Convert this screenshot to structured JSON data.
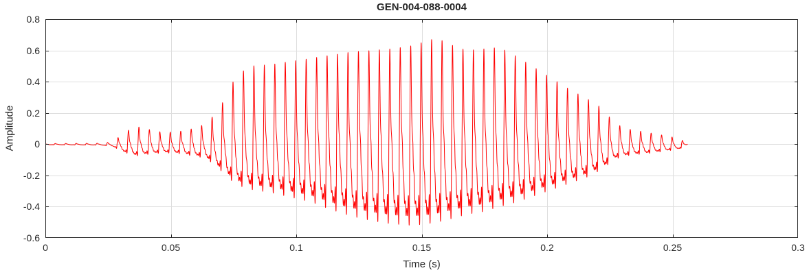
{
  "figure": {
    "background": "#ffffff"
  },
  "chart_data": {
    "type": "line",
    "title": "GEN-004-088-0004",
    "xlabel": "Time (s)",
    "ylabel": "Amplitude",
    "xlim": [
      0,
      0.3
    ],
    "ylim": [
      -0.6,
      0.8
    ],
    "x_ticks": [
      0,
      0.05,
      0.1,
      0.15,
      0.2,
      0.25,
      0.3
    ],
    "x_tick_labels": [
      "0",
      "0.05",
      "0.1",
      "0.15",
      "0.2",
      "0.25",
      "0.3"
    ],
    "y_ticks": [
      -0.6,
      -0.4,
      -0.2,
      0,
      0.2,
      0.4,
      0.6,
      0.8
    ],
    "y_tick_labels": [
      "-0.6",
      "-0.4",
      "-0.2",
      "0",
      "0.2",
      "0.4",
      "0.6",
      "0.8"
    ],
    "grid": true,
    "grid_color": "#dedede",
    "axis_color": "#262626",
    "line_color": "#ff0000",
    "line_width": 1,
    "legend": null,
    "signal": {
      "description": "speech-like amplitude waveform burst, silence until ~0.025 s, small oscillations 0.03-0.07 s, dense voiced burst 0.07-0.23 s peaking ~0.68 near t=0.155 s, decaying tail ending ~0.256 s",
      "t_start": 0.0,
      "t_end": 0.256,
      "f0_hz": 240,
      "harmonic_amps": [
        1.0,
        0.62,
        0.45,
        0.32,
        0.2,
        0.12
      ],
      "harmonic_phases": [
        0.0,
        0.35,
        0.8,
        1.3,
        1.9,
        2.5
      ],
      "envelope_keypoints_t_hi_lo": [
        [
          0.0,
          0.004,
          -0.004
        ],
        [
          0.022,
          0.006,
          -0.006
        ],
        [
          0.027,
          0.015,
          -0.015
        ],
        [
          0.031,
          0.07,
          -0.05
        ],
        [
          0.036,
          0.115,
          -0.075
        ],
        [
          0.041,
          0.095,
          -0.065
        ],
        [
          0.047,
          0.075,
          -0.055
        ],
        [
          0.053,
          0.08,
          -0.06
        ],
        [
          0.059,
          0.1,
          -0.075
        ],
        [
          0.064,
          0.13,
          -0.09
        ],
        [
          0.068,
          0.2,
          -0.14
        ],
        [
          0.072,
          0.3,
          -0.2
        ],
        [
          0.076,
          0.44,
          -0.26
        ],
        [
          0.082,
          0.5,
          -0.29
        ],
        [
          0.09,
          0.51,
          -0.31
        ],
        [
          0.098,
          0.53,
          -0.34
        ],
        [
          0.106,
          0.55,
          -0.37
        ],
        [
          0.114,
          0.57,
          -0.42
        ],
        [
          0.122,
          0.59,
          -0.46
        ],
        [
          0.13,
          0.6,
          -0.49
        ],
        [
          0.138,
          0.61,
          -0.51
        ],
        [
          0.146,
          0.63,
          -0.52
        ],
        [
          0.152,
          0.66,
          -0.51
        ],
        [
          0.156,
          0.68,
          -0.5
        ],
        [
          0.161,
          0.64,
          -0.48
        ],
        [
          0.168,
          0.6,
          -0.45
        ],
        [
          0.175,
          0.61,
          -0.43
        ],
        [
          0.181,
          0.62,
          -0.4
        ],
        [
          0.188,
          0.56,
          -0.37
        ],
        [
          0.195,
          0.49,
          -0.33
        ],
        [
          0.202,
          0.42,
          -0.29
        ],
        [
          0.209,
          0.35,
          -0.25
        ],
        [
          0.216,
          0.29,
          -0.21
        ],
        [
          0.222,
          0.23,
          -0.16
        ],
        [
          0.227,
          0.13,
          -0.095
        ],
        [
          0.233,
          0.095,
          -0.07
        ],
        [
          0.24,
          0.075,
          -0.06
        ],
        [
          0.247,
          0.055,
          -0.045
        ],
        [
          0.253,
          0.035,
          -0.03
        ],
        [
          0.256,
          0.0,
          0.0
        ]
      ]
    }
  }
}
